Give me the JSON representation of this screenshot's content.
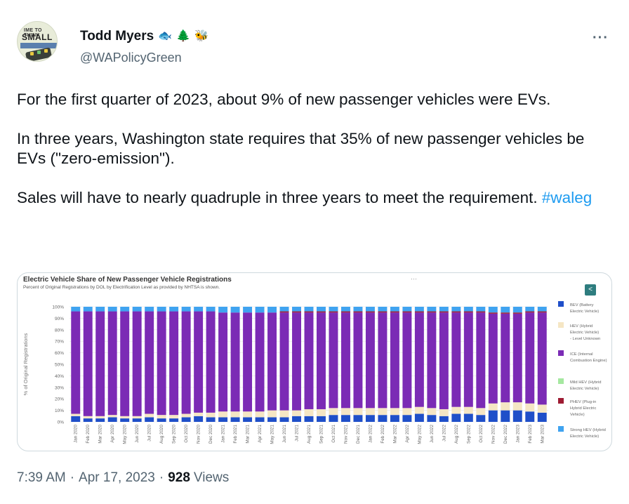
{
  "author": {
    "display_name": "Todd Myers",
    "emojis": [
      "🐟",
      "🌲",
      "🐝"
    ],
    "handle": "@WAPolicyGreen",
    "avatar_text_1": "IME TO THINK",
    "avatar_text_2": "SMALL"
  },
  "more_label": "···",
  "body": {
    "paragraph_1": "For the first quarter of 2023, about 9% of new passenger vehicles were EVs.",
    "paragraph_2": "In three years, Washington state requires that 35% of new passenger vehicles be EVs (\"zero-emission\").",
    "paragraph_3": "Sales will have to nearly quadruple in three years to meet the requirement.",
    "hashtag": "#waleg"
  },
  "media": {
    "title": "Electric Vehicle Share of New Passenger Vehicle Registrations",
    "subtitle": "Percent of Original Registrations by DOL by Electrification Level as provided by NHTSA is shown.",
    "menu_dots": "···",
    "share_icon": "share-icon"
  },
  "chart_data": {
    "type": "bar",
    "stacked": true,
    "ylabel": "% of Original Registrations",
    "ylim": [
      0,
      100
    ],
    "y_ticks": [
      "0%",
      "10%",
      "20%",
      "30%",
      "40%",
      "50%",
      "60%",
      "70%",
      "80%",
      "90%",
      "100%"
    ],
    "grid": true,
    "legend_position": "right",
    "categories": [
      "Jan 2020",
      "Feb 2020",
      "Mar 2020",
      "Apr 2020",
      "May 2020",
      "Jun 2020",
      "Jul 2020",
      "Aug 2020",
      "Sep 2020",
      "Oct 2020",
      "Nov 2020",
      "Dec 2020",
      "Jan 2021",
      "Feb 2021",
      "Mar 2021",
      "Apr 2021",
      "May 2021",
      "Jun 2021",
      "Jul 2021",
      "Aug 2021",
      "Sep 2021",
      "Oct 2021",
      "Nov 2021",
      "Dec 2021",
      "Jan 2022",
      "Feb 2022",
      "Mar 2022",
      "Apr 2022",
      "May 2022",
      "Jun 2022",
      "Jul 2022",
      "Aug 2022",
      "Sep 2022",
      "Oct 2022",
      "Nov 2022",
      "Dec 2022",
      "Jan 2023",
      "Feb 2023",
      "Mar 2023"
    ],
    "series": [
      {
        "name": "BEV (Battery Electric Vehicle)",
        "color": "#1f4fc9",
        "values": [
          5,
          3,
          3,
          4,
          3,
          3,
          4,
          3,
          3,
          4,
          5,
          4,
          4,
          4,
          4,
          4,
          4,
          4,
          5,
          5,
          5,
          6,
          6,
          6,
          6,
          6,
          6,
          6,
          7,
          6,
          5,
          7,
          7,
          6,
          10,
          10,
          10,
          9,
          8
        ]
      },
      {
        "name": "HEV (Hybrid Electric Vehicle) - Level Unknown",
        "color": "#f5e6c4",
        "values": [
          2,
          2,
          2,
          2,
          2,
          2,
          3,
          3,
          3,
          3,
          3,
          4,
          5,
          5,
          5,
          5,
          6,
          6,
          5,
          6,
          6,
          6,
          6,
          6,
          6,
          6,
          6,
          6,
          6,
          6,
          6,
          6,
          6,
          6,
          6,
          7,
          7,
          7,
          7
        ]
      },
      {
        "name": "ICE (Internal Combustion Engine)",
        "color": "#7b2bb5",
        "values": [
          89,
          91,
          91,
          90,
          91,
          91,
          89,
          90,
          90,
          89,
          88,
          88,
          86,
          86,
          86,
          86,
          85,
          85,
          85,
          84,
          84,
          83,
          83,
          83,
          83,
          83,
          83,
          83,
          82,
          83,
          84,
          82,
          82,
          83,
          78,
          77,
          77,
          79,
          80
        ]
      },
      {
        "name": "Mild HEV (Hybrid Electric Vehicle)",
        "color": "#a5e8a0",
        "values": [
          0,
          0,
          0,
          0,
          0,
          0,
          0,
          0,
          0,
          0,
          0,
          0,
          0,
          0,
          0,
          0,
          0,
          0,
          0,
          0,
          0,
          0,
          0,
          0,
          0,
          0,
          0,
          0,
          0,
          0,
          0,
          0,
          0,
          0,
          0,
          0,
          0,
          0,
          0
        ]
      },
      {
        "name": "PHEV (Plug-in Hybrid Electric Vehicle)",
        "color": "#9e1b32",
        "values": [
          0,
          0,
          0,
          0,
          0,
          0,
          0,
          0,
          0,
          0,
          0,
          0,
          0,
          0,
          0,
          0,
          0,
          1,
          1,
          1,
          1,
          1,
          1,
          1,
          1,
          1,
          1,
          1,
          1,
          1,
          1,
          1,
          1,
          1,
          1,
          1,
          1,
          1,
          1
        ]
      },
      {
        "name": "Strong HEV (Hybrid Electric Vehicle)",
        "color": "#3fa3f0",
        "values": [
          4,
          4,
          4,
          4,
          4,
          4,
          4,
          4,
          4,
          4,
          4,
          4,
          5,
          5,
          5,
          5,
          5,
          4,
          4,
          4,
          4,
          4,
          4,
          4,
          4,
          4,
          4,
          4,
          4,
          4,
          4,
          4,
          4,
          4,
          5,
          5,
          5,
          4,
          4
        ]
      }
    ],
    "legend_entries": [
      {
        "label": "BEV (Battery Electric Vehicle)",
        "color": "#1f4fc9"
      },
      {
        "label": "HEV (Hybrid Electric Vehicle) - Level Unknown",
        "color": "#f5e6c4"
      },
      {
        "label": "ICE (Internal Combustion Engine)",
        "color": "#7b2bb5"
      },
      {
        "label": "Mild HEV (Hybrid Electric Vehicle)",
        "color": "#a5e8a0"
      },
      {
        "label": "PHEV (Plug-in Hybrid Electric Vehicle)",
        "color": "#9e1b32"
      },
      {
        "label": "Strong HEV (Hybrid Electric Vehicle)",
        "color": "#3fa3f0"
      }
    ]
  },
  "footer": {
    "time": "7:39 AM",
    "separator": "·",
    "date": "Apr 17, 2023",
    "views_count": "928",
    "views_label": "Views"
  }
}
